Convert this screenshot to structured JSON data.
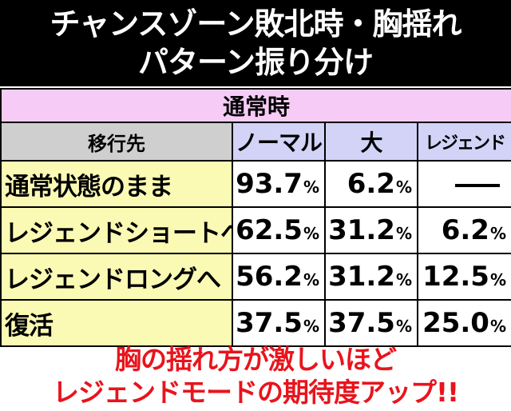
{
  "header": {
    "title_line1": "チャンスゾーン敗北時・胸揺れ",
    "title_line2": "パターン振り分け"
  },
  "table": {
    "mode_label": "通常時",
    "row_header_label": "移行先",
    "columns": [
      "ノーマル",
      "大",
      "レジェンド"
    ],
    "rows": [
      {
        "label": "通常状態のまま",
        "values": [
          "93.7",
          "6.2",
          null
        ]
      },
      {
        "label": "レジェンドショートへ",
        "values": [
          "62.5",
          "31.2",
          "6.2"
        ]
      },
      {
        "label": "レジェンドロングへ",
        "values": [
          "56.2",
          "31.2",
          "12.5"
        ]
      },
      {
        "label": "復活",
        "values": [
          "37.5",
          "37.5",
          "25.0"
        ]
      }
    ],
    "percent_sign": "%"
  },
  "footer": {
    "line1": "胸の揺れ方が激しいほど",
    "line2": "レジェンドモードの期待度アップ!!"
  },
  "colors": {
    "header_bg": "#000000",
    "mode_row_bg": "#f6ccf6",
    "label_header_bg": "#cfcfcf",
    "column_header_bg": "#d3d3f8",
    "row_label_bg": "#fafab4",
    "footer_text": "#e8141c"
  }
}
